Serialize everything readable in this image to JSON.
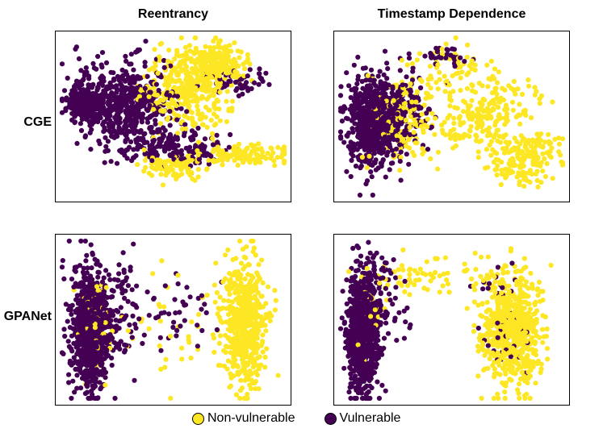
{
  "chart_data": {
    "type": "scatter",
    "column_titles": [
      "Reentrancy",
      "Timestamp Dependence"
    ],
    "row_labels": [
      "CGE",
      "GPANet"
    ],
    "legend": [
      {
        "label": "Non-vulnerable",
        "color": "#FDE725"
      },
      {
        "label": "Vulnerable",
        "color": "#440154"
      }
    ],
    "axes_visible": false,
    "axis_range": {
      "x": [
        0,
        100
      ],
      "y": [
        0,
        100
      ]
    },
    "panels": [
      {
        "id": "cge-reentrancy",
        "row": "CGE",
        "column": "Reentrancy",
        "clusters": [
          {
            "class": "Vulnerable",
            "n": 520,
            "cx": 28,
            "cy": 43,
            "sx": 11,
            "sy": 13
          },
          {
            "class": "Vulnerable",
            "n": 240,
            "cx": 10,
            "cy": 42,
            "sx": 4,
            "sy": 6
          },
          {
            "class": "Vulnerable",
            "n": 160,
            "cx": 52,
            "cy": 70,
            "sx": 11,
            "sy": 6
          },
          {
            "class": "Vulnerable",
            "n": 60,
            "cx": 80,
            "cy": 27,
            "sx": 7,
            "sy": 4
          },
          {
            "class": "Non-vulnerable",
            "n": 360,
            "cx": 57,
            "cy": 33,
            "sx": 11,
            "sy": 13
          },
          {
            "class": "Non-vulnerable",
            "n": 190,
            "cx": 70,
            "cy": 16,
            "sx": 7,
            "sy": 7
          },
          {
            "class": "Non-vulnerable",
            "n": 120,
            "cx": 82,
            "cy": 74,
            "sx": 10,
            "sy": 3
          },
          {
            "class": "Non-vulnerable",
            "n": 90,
            "cx": 50,
            "cy": 82,
            "sx": 7,
            "sy": 4
          }
        ]
      },
      {
        "id": "cge-timestamp",
        "row": "CGE",
        "column": "Timestamp Dependence",
        "clusters": [
          {
            "class": "Vulnerable",
            "n": 620,
            "cx": 15,
            "cy": 54,
            "sx": 6,
            "sy": 15
          },
          {
            "class": "Vulnerable",
            "n": 140,
            "cx": 29,
            "cy": 44,
            "sx": 6,
            "sy": 11
          },
          {
            "class": "Vulnerable",
            "n": 35,
            "cx": 48,
            "cy": 12,
            "sx": 5,
            "sy": 3
          },
          {
            "class": "Non-vulnerable",
            "n": 160,
            "cx": 27,
            "cy": 50,
            "sx": 7,
            "sy": 14
          },
          {
            "class": "Non-vulnerable",
            "n": 130,
            "cx": 58,
            "cy": 52,
            "sx": 11,
            "sy": 11
          },
          {
            "class": "Non-vulnerable",
            "n": 110,
            "cx": 84,
            "cy": 71,
            "sx": 8,
            "sy": 6
          },
          {
            "class": "Non-vulnerable",
            "n": 90,
            "cx": 72,
            "cy": 42,
            "sx": 10,
            "sy": 10
          },
          {
            "class": "Non-vulnerable",
            "n": 55,
            "cx": 52,
            "cy": 17,
            "sx": 9,
            "sy": 7
          },
          {
            "class": "Non-vulnerable",
            "n": 70,
            "cx": 80,
            "cy": 84,
            "sx": 8,
            "sy": 5
          }
        ]
      },
      {
        "id": "gpanet-reentrancy",
        "row": "GPANet",
        "column": "Reentrancy",
        "clusters": [
          {
            "class": "Vulnerable",
            "n": 820,
            "cx": 13,
            "cy": 55,
            "sx": 4.5,
            "sy": 20
          },
          {
            "class": "Vulnerable",
            "n": 80,
            "cx": 26,
            "cy": 45,
            "sx": 5,
            "sy": 18
          },
          {
            "class": "Vulnerable",
            "n": 45,
            "cx": 48,
            "cy": 46,
            "sx": 12,
            "sy": 16
          },
          {
            "class": "Non-vulnerable",
            "n": 560,
            "cx": 82,
            "cy": 53,
            "sx": 5,
            "sy": 20
          },
          {
            "class": "Non-vulnerable",
            "n": 60,
            "cx": 15,
            "cy": 50,
            "sx": 4,
            "sy": 18
          },
          {
            "class": "Non-vulnerable",
            "n": 40,
            "cx": 52,
            "cy": 55,
            "sx": 13,
            "sy": 17
          }
        ]
      },
      {
        "id": "gpanet-timestamp",
        "row": "GPANet",
        "column": "Timestamp Dependence",
        "clusters": [
          {
            "class": "Vulnerable",
            "n": 820,
            "cx": 10,
            "cy": 58,
            "sx": 3.5,
            "sy": 20
          },
          {
            "class": "Vulnerable",
            "n": 55,
            "cx": 22,
            "cy": 40,
            "sx": 6,
            "sy": 17
          },
          {
            "class": "Vulnerable",
            "n": 45,
            "cx": 74,
            "cy": 48,
            "sx": 6,
            "sy": 18
          },
          {
            "class": "Non-vulnerable",
            "n": 600,
            "cx": 77,
            "cy": 56,
            "sx": 6.5,
            "sy": 19
          },
          {
            "class": "Non-vulnerable",
            "n": 60,
            "cx": 40,
            "cy": 22,
            "sx": 14,
            "sy": 7
          },
          {
            "class": "Non-vulnerable",
            "n": 35,
            "cx": 14,
            "cy": 40,
            "sx": 4,
            "sy": 14
          }
        ]
      }
    ]
  }
}
